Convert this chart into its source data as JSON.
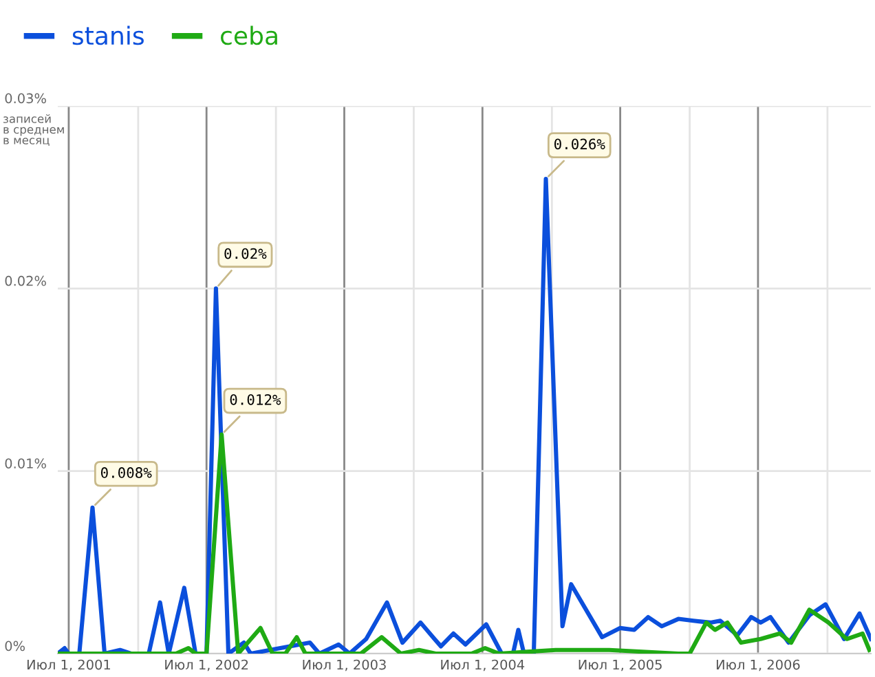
{
  "chart_data": {
    "type": "line",
    "ylabel": "записей\nв среднем\nв месяц",
    "xlim": [
      "2001-06-02",
      "2007-04-26"
    ],
    "ylim": [
      0,
      0.03
    ],
    "xticks": [
      {
        "value": "2001-07-01",
        "label": "Июл 1, 2001"
      },
      {
        "value": "2002-01-01",
        "label": null
      },
      {
        "value": "2002-07-01",
        "label": "Июл 1, 2002"
      },
      {
        "value": "2003-01-01",
        "label": null
      },
      {
        "value": "2003-07-01",
        "label": "Июл 1, 2003"
      },
      {
        "value": "2004-01-01",
        "label": null
      },
      {
        "value": "2004-07-01",
        "label": "Июл 1, 2004"
      },
      {
        "value": "2005-01-01",
        "label": null
      },
      {
        "value": "2005-07-01",
        "label": "Июл 1, 2005"
      },
      {
        "value": "2006-01-01",
        "label": null
      },
      {
        "value": "2006-07-01",
        "label": "Июл 1, 2006"
      },
      {
        "value": "2007-01-01",
        "label": null
      }
    ],
    "yticks": [
      {
        "value": 0,
        "label": "0%"
      },
      {
        "value": 0.01,
        "label": "0.01%"
      },
      {
        "value": 0.02,
        "label": "0.02%"
      },
      {
        "value": 0.03,
        "label": "0.03%"
      }
    ],
    "grid": true,
    "legend": "top left",
    "marker": "none",
    "line_style": "solid",
    "series": [
      {
        "name": "stanis",
        "color": "#0b4fdc",
        "x": [
          "2001-06-02",
          "2001-06-20",
          "2001-07-01",
          "2001-07-29",
          "2001-09-02",
          "2001-10-04",
          "2001-11-14",
          "2001-12-13",
          "2002-01-29",
          "2002-02-28",
          "2002-03-23",
          "2002-05-03",
          "2002-06-02",
          "2002-07-01",
          "2002-07-26",
          "2002-08-28",
          "2002-10-08",
          "2002-10-26",
          "2003-04-01",
          "2003-04-26",
          "2003-06-16",
          "2003-07-15",
          "2003-08-28",
          "2003-10-22",
          "2003-12-02",
          "2004-01-19",
          "2004-02-25",
          "2004-03-13",
          "2004-04-15",
          "2004-05-17",
          "2004-07-11",
          "2004-08-21",
          "2004-09-20",
          "2004-10-04",
          "2004-10-19",
          "2004-11-14",
          "2004-12-16",
          "2005-01-29",
          "2005-02-21",
          "2005-05-14",
          "2005-07-01",
          "2005-08-07",
          "2005-09-13",
          "2005-10-19",
          "2005-12-02",
          "2006-01-11",
          "2006-02-25",
          "2006-03-23",
          "2006-05-07",
          "2006-06-13",
          "2006-07-08",
          "2006-08-03",
          "2006-09-20",
          "2006-11-14",
          "2006-12-27",
          "2007-02-14",
          "2007-03-27",
          "2007-04-26"
        ],
        "values": [
          0,
          0.0003,
          0,
          0,
          0.008,
          0,
          0.0002,
          0,
          0,
          0.0028,
          0,
          0.0036,
          0,
          0,
          0.02,
          0,
          0.0006,
          0,
          0.0006,
          0,
          0.0005,
          0,
          0.0008,
          0.0028,
          0.0006,
          0.0017,
          0.0008,
          0.0004,
          0.0011,
          0.0005,
          0.0016,
          0,
          0,
          0.0013,
          0,
          0,
          0.026,
          0.0015,
          0.0038,
          0.0009,
          0.0014,
          0.0013,
          0.002,
          0.0015,
          0.0019,
          0.0018,
          0.0017,
          0.0018,
          0.001,
          0.002,
          0.0017,
          0.002,
          0.0006,
          0.0021,
          0.0027,
          0.0008,
          0.0022,
          0.0008
        ]
      },
      {
        "name": "ceba",
        "color": "#1faa14",
        "x": [
          "2001-06-02",
          "2002-04-11",
          "2002-05-14",
          "2002-06-02",
          "2002-07-01",
          "2002-08-10",
          "2002-09-23",
          "2002-11-21",
          "2002-12-23",
          "2003-01-26",
          "2003-02-25",
          "2003-03-20",
          "2003-08-14",
          "2003-10-08",
          "2003-11-28",
          "2004-01-15",
          "2004-02-28",
          "2004-06-02",
          "2004-07-08",
          "2004-08-14",
          "2005-01-11",
          "2005-06-02",
          "2005-12-02",
          "2006-01-01",
          "2006-02-14",
          "2006-03-09",
          "2006-04-11",
          "2006-05-17",
          "2006-07-08",
          "2006-08-28",
          "2006-09-27",
          "2006-11-14",
          "2007-01-04",
          "2007-02-21",
          "2007-04-04",
          "2007-04-22"
        ],
        "values": [
          0,
          0,
          0.0003,
          0,
          0,
          0.012,
          0,
          0.0014,
          0,
          0,
          0.0009,
          0,
          0,
          0.0009,
          0,
          0.0002,
          0,
          0,
          0.0003,
          0,
          0.0002,
          0.0002,
          0,
          0,
          0.0017,
          0.0013,
          0.0017,
          0.0006,
          0.0008,
          0.0011,
          0.0006,
          0.0024,
          0.0017,
          0.0008,
          0.0011,
          0.0002
        ]
      }
    ],
    "annotations": [
      {
        "text": "0.008%",
        "x": "2001-09-02",
        "y": 0.008
      },
      {
        "text": "0.02%",
        "x": "2002-07-26",
        "y": 0.02
      },
      {
        "text": "0.012%",
        "x": "2002-08-10",
        "y": 0.012
      },
      {
        "text": "0.026%",
        "x": "2004-12-16",
        "y": 0.026
      }
    ]
  }
}
